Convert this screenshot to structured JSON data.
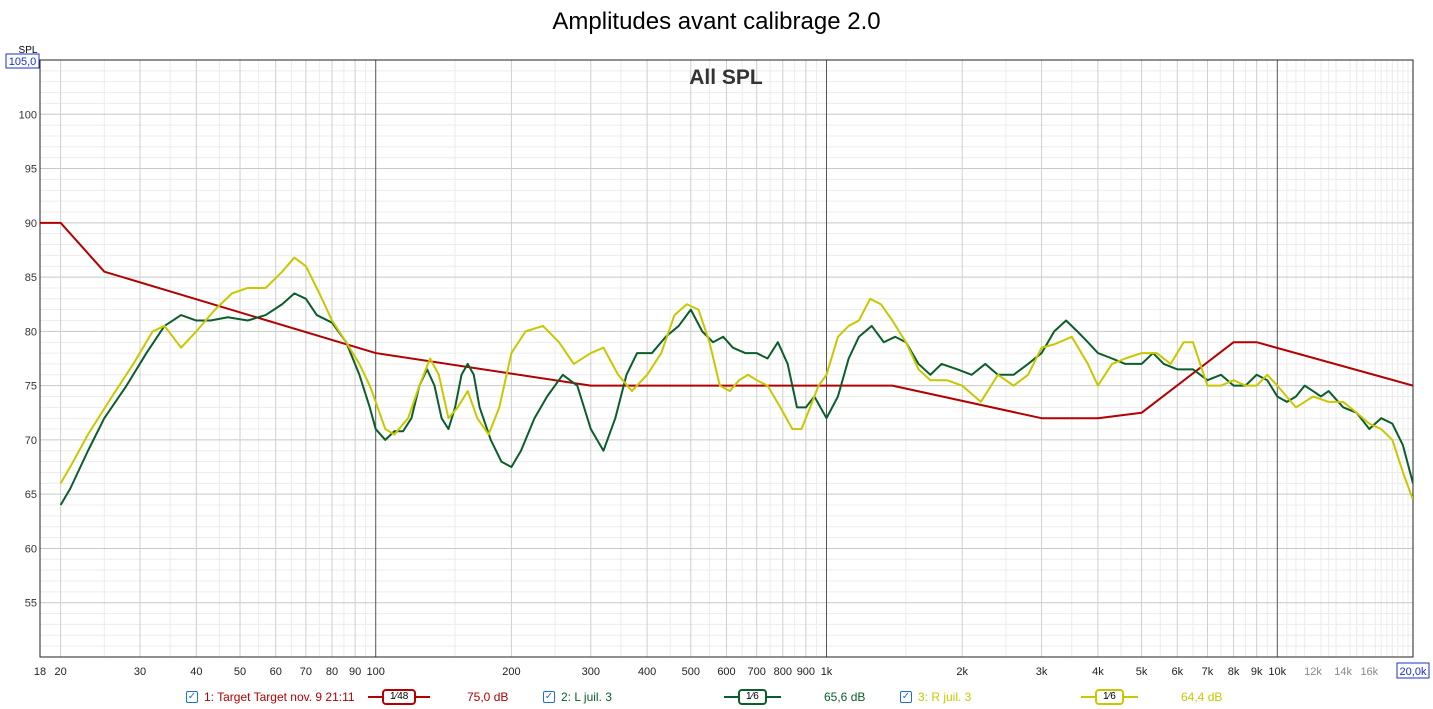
{
  "chart_data": {
    "type": "line",
    "title": "Amplitudes avant calibrage 2.0",
    "subtitle": "All SPL",
    "ylabel": "SPL",
    "y_top_readout": "105,0",
    "x_right_readout": "20,0k",
    "xlim": [
      18,
      20000
    ],
    "ylim": [
      50,
      105
    ],
    "x_scale": "log",
    "grid": true,
    "legend_position": "bottom",
    "y_ticks": [
      55,
      60,
      65,
      70,
      75,
      80,
      85,
      90,
      95,
      100
    ],
    "x_ticks": [
      {
        "v": 18,
        "l": "18"
      },
      {
        "v": 20,
        "l": "20"
      },
      {
        "v": 30,
        "l": "30"
      },
      {
        "v": 40,
        "l": "40"
      },
      {
        "v": 50,
        "l": "50"
      },
      {
        "v": 60,
        "l": "60"
      },
      {
        "v": 70,
        "l": "70"
      },
      {
        "v": 80,
        "l": "80"
      },
      {
        "v": 90,
        "l": "90"
      },
      {
        "v": 100,
        "l": "100"
      },
      {
        "v": 200,
        "l": "200"
      },
      {
        "v": 300,
        "l": "300"
      },
      {
        "v": 400,
        "l": "400"
      },
      {
        "v": 500,
        "l": "500"
      },
      {
        "v": 600,
        "l": "600"
      },
      {
        "v": 700,
        "l": "700"
      },
      {
        "v": 800,
        "l": "800"
      },
      {
        "v": 900,
        "l": "900"
      },
      {
        "v": 1000,
        "l": "1k"
      },
      {
        "v": 2000,
        "l": "2k"
      },
      {
        "v": 3000,
        "l": "3k"
      },
      {
        "v": 4000,
        "l": "4k"
      },
      {
        "v": 5000,
        "l": "5k"
      },
      {
        "v": 6000,
        "l": "6k"
      },
      {
        "v": 7000,
        "l": "7k"
      },
      {
        "v": 8000,
        "l": "8k"
      },
      {
        "v": 9000,
        "l": "9k"
      },
      {
        "v": 10000,
        "l": "10k"
      },
      {
        "v": 12000,
        "l": "12k"
      },
      {
        "v": 14000,
        "l": "14k"
      },
      {
        "v": 16000,
        "l": "16k"
      }
    ],
    "series": [
      {
        "name": "1: Target Target nov. 9 21:11",
        "color": "#b30000",
        "smoothing": "1⁄48",
        "readout": "75,0 dB",
        "points": [
          [
            18,
            90
          ],
          [
            20,
            90
          ],
          [
            25,
            85.5
          ],
          [
            100,
            78
          ],
          [
            300,
            75
          ],
          [
            1400,
            75
          ],
          [
            3000,
            72
          ],
          [
            4000,
            72
          ],
          [
            5000,
            72.5
          ],
          [
            8000,
            79
          ],
          [
            9000,
            79
          ],
          [
            20000,
            75
          ]
        ]
      },
      {
        "name": "2: L juil. 3",
        "color": "#0b5e2c",
        "smoothing": "1⁄6",
        "readout": "65,6 dB",
        "points": [
          [
            20,
            64
          ],
          [
            21,
            65.5
          ],
          [
            23,
            69
          ],
          [
            25,
            72
          ],
          [
            28,
            75
          ],
          [
            31,
            78
          ],
          [
            34,
            80.5
          ],
          [
            37,
            81.5
          ],
          [
            40,
            81
          ],
          [
            43,
            81
          ],
          [
            47,
            81.3
          ],
          [
            52,
            81
          ],
          [
            57,
            81.5
          ],
          [
            62,
            82.5
          ],
          [
            66,
            83.5
          ],
          [
            70,
            83
          ],
          [
            74,
            81.5
          ],
          [
            80,
            80.8
          ],
          [
            86,
            79
          ],
          [
            92,
            76
          ],
          [
            97,
            73
          ],
          [
            100,
            71
          ],
          [
            105,
            70
          ],
          [
            110,
            70.8
          ],
          [
            115,
            70.8
          ],
          [
            120,
            72
          ],
          [
            125,
            75
          ],
          [
            130,
            76.5
          ],
          [
            135,
            75
          ],
          [
            140,
            72
          ],
          [
            145,
            71
          ],
          [
            150,
            73
          ],
          [
            155,
            76
          ],
          [
            160,
            77
          ],
          [
            165,
            76
          ],
          [
            170,
            73
          ],
          [
            180,
            70
          ],
          [
            190,
            68
          ],
          [
            200,
            67.5
          ],
          [
            210,
            69
          ],
          [
            225,
            72
          ],
          [
            240,
            74
          ],
          [
            260,
            76
          ],
          [
            280,
            75
          ],
          [
            300,
            71
          ],
          [
            320,
            69
          ],
          [
            340,
            72
          ],
          [
            360,
            76
          ],
          [
            380,
            78
          ],
          [
            410,
            78
          ],
          [
            440,
            79.5
          ],
          [
            470,
            80.5
          ],
          [
            500,
            82
          ],
          [
            530,
            80
          ],
          [
            560,
            79
          ],
          [
            590,
            79.5
          ],
          [
            620,
            78.5
          ],
          [
            660,
            78
          ],
          [
            700,
            78
          ],
          [
            740,
            77.5
          ],
          [
            780,
            79
          ],
          [
            820,
            77
          ],
          [
            860,
            73
          ],
          [
            900,
            73
          ],
          [
            940,
            74
          ],
          [
            1000,
            72
          ],
          [
            1060,
            74
          ],
          [
            1120,
            77.5
          ],
          [
            1180,
            79.5
          ],
          [
            1260,
            80.5
          ],
          [
            1340,
            79
          ],
          [
            1420,
            79.5
          ],
          [
            1500,
            79
          ],
          [
            1600,
            77
          ],
          [
            1700,
            76
          ],
          [
            1800,
            77
          ],
          [
            1950,
            76.5
          ],
          [
            2100,
            76
          ],
          [
            2250,
            77
          ],
          [
            2400,
            76
          ],
          [
            2600,
            76
          ],
          [
            2800,
            77
          ],
          [
            3000,
            78
          ],
          [
            3200,
            80
          ],
          [
            3400,
            81
          ],
          [
            3600,
            80
          ],
          [
            3800,
            79
          ],
          [
            4000,
            78
          ],
          [
            4300,
            77.5
          ],
          [
            4600,
            77
          ],
          [
            5000,
            77
          ],
          [
            5300,
            78
          ],
          [
            5600,
            77
          ],
          [
            6000,
            76.5
          ],
          [
            6500,
            76.5
          ],
          [
            7000,
            75.5
          ],
          [
            7500,
            76
          ],
          [
            8000,
            75
          ],
          [
            8500,
            75
          ],
          [
            9000,
            76
          ],
          [
            9500,
            75.5
          ],
          [
            10000,
            74
          ],
          [
            10500,
            73.5
          ],
          [
            11000,
            74
          ],
          [
            11500,
            75
          ],
          [
            12000,
            74.5
          ],
          [
            12500,
            74
          ],
          [
            13000,
            74.5
          ],
          [
            14000,
            73
          ],
          [
            15000,
            72.5
          ],
          [
            16000,
            71
          ],
          [
            17000,
            72
          ],
          [
            18000,
            71.5
          ],
          [
            19000,
            69.5
          ],
          [
            20000,
            66
          ]
        ]
      },
      {
        "name": "3: R juil. 3",
        "color": "#c8c800",
        "smoothing": "1⁄6",
        "readout": "64,4 dB",
        "points": [
          [
            20,
            66
          ],
          [
            21,
            67.5
          ],
          [
            23,
            70.5
          ],
          [
            26,
            74
          ],
          [
            29,
            77
          ],
          [
            32,
            80
          ],
          [
            34,
            80.5
          ],
          [
            37,
            78.5
          ],
          [
            40,
            80
          ],
          [
            44,
            82
          ],
          [
            48,
            83.5
          ],
          [
            52,
            84
          ],
          [
            57,
            84
          ],
          [
            62,
            85.5
          ],
          [
            66,
            86.8
          ],
          [
            70,
            86
          ],
          [
            75,
            83.5
          ],
          [
            80,
            81
          ],
          [
            86,
            79
          ],
          [
            92,
            77
          ],
          [
            97,
            75
          ],
          [
            100,
            73.5
          ],
          [
            105,
            71
          ],
          [
            110,
            70.5
          ],
          [
            118,
            72
          ],
          [
            125,
            75
          ],
          [
            132,
            77.5
          ],
          [
            138,
            76
          ],
          [
            145,
            72
          ],
          [
            152,
            73
          ],
          [
            160,
            74.5
          ],
          [
            168,
            72
          ],
          [
            178,
            70.5
          ],
          [
            188,
            73
          ],
          [
            200,
            78
          ],
          [
            215,
            80
          ],
          [
            235,
            80.5
          ],
          [
            255,
            79
          ],
          [
            275,
            77
          ],
          [
            300,
            78
          ],
          [
            320,
            78.5
          ],
          [
            345,
            76
          ],
          [
            370,
            74.5
          ],
          [
            400,
            76
          ],
          [
            430,
            78
          ],
          [
            460,
            81.5
          ],
          [
            490,
            82.5
          ],
          [
            520,
            82
          ],
          [
            550,
            79
          ],
          [
            580,
            75
          ],
          [
            610,
            74.5
          ],
          [
            640,
            75.5
          ],
          [
            670,
            76
          ],
          [
            700,
            75.5
          ],
          [
            740,
            75
          ],
          [
            790,
            73
          ],
          [
            840,
            71
          ],
          [
            880,
            71
          ],
          [
            920,
            73
          ],
          [
            960,
            75
          ],
          [
            1000,
            76
          ],
          [
            1060,
            79.5
          ],
          [
            1120,
            80.5
          ],
          [
            1180,
            81
          ],
          [
            1250,
            83
          ],
          [
            1320,
            82.5
          ],
          [
            1400,
            81
          ],
          [
            1500,
            79
          ],
          [
            1600,
            76.5
          ],
          [
            1700,
            75.5
          ],
          [
            1850,
            75.5
          ],
          [
            2000,
            75
          ],
          [
            2200,
            73.5
          ],
          [
            2400,
            76
          ],
          [
            2600,
            75
          ],
          [
            2800,
            76
          ],
          [
            3000,
            78.5
          ],
          [
            3200,
            78.8
          ],
          [
            3500,
            79.5
          ],
          [
            3800,
            77
          ],
          [
            4000,
            75
          ],
          [
            4300,
            77
          ],
          [
            4600,
            77.5
          ],
          [
            5000,
            78
          ],
          [
            5400,
            78
          ],
          [
            5800,
            77
          ],
          [
            6200,
            79
          ],
          [
            6500,
            79
          ],
          [
            7000,
            75
          ],
          [
            7500,
            75
          ],
          [
            8000,
            75.5
          ],
          [
            8500,
            75
          ],
          [
            9000,
            75
          ],
          [
            9500,
            76
          ],
          [
            10000,
            75
          ],
          [
            11000,
            73
          ],
          [
            11500,
            73.5
          ],
          [
            12000,
            74
          ],
          [
            13000,
            73.5
          ],
          [
            14000,
            73.5
          ],
          [
            15000,
            72.5
          ],
          [
            16000,
            71.5
          ],
          [
            17000,
            71
          ],
          [
            18000,
            70
          ],
          [
            19000,
            67
          ],
          [
            20000,
            64.5
          ]
        ]
      }
    ]
  }
}
